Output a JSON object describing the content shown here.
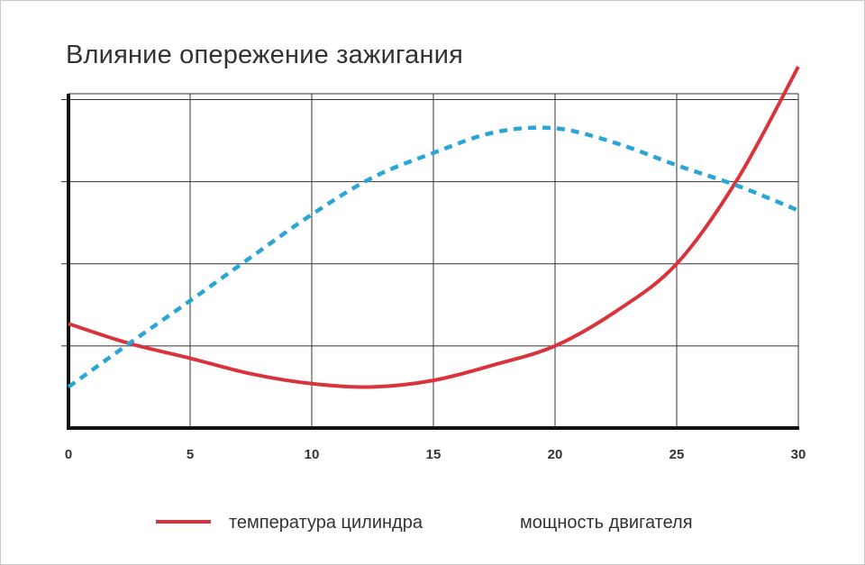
{
  "title": "Влияние опережение зажигания",
  "colors": {
    "temperature": "#d9343d",
    "power": "#2aa6d6",
    "grid": "#333333",
    "axis": "#111111"
  },
  "chart_data": {
    "type": "line",
    "title": "Влияние опережение зажигания",
    "xlabel": "",
    "ylabel": "",
    "xlim": [
      0,
      30
    ],
    "ylim": [
      0,
      4.4
    ],
    "xticks": [
      0,
      5,
      10,
      15,
      20,
      25,
      30
    ],
    "xtick_labels": [
      "0",
      "5",
      "10",
      "15",
      "20",
      "25",
      "30"
    ],
    "grid": true,
    "legend_position": "bottom",
    "series": [
      {
        "name": "температура цилиндра",
        "color": "#d9343d",
        "style": "solid",
        "x": [
          0,
          2.5,
          5,
          7.5,
          10,
          12.5,
          15,
          17.5,
          20,
          22.5,
          25,
          27.5,
          30
        ],
        "y": [
          1.27,
          1.03,
          0.85,
          0.66,
          0.54,
          0.5,
          0.58,
          0.77,
          1.0,
          1.42,
          2.0,
          3.03,
          4.4
        ]
      },
      {
        "name": "мощность двигателя",
        "color": "#2aa6d6",
        "style": "dashed",
        "x": [
          0,
          2.5,
          5,
          7.5,
          10,
          12.5,
          15,
          17.5,
          20,
          22.5,
          25,
          27.5,
          30
        ],
        "y": [
          0.5,
          1.03,
          1.55,
          2.08,
          2.6,
          3.05,
          3.35,
          3.6,
          3.65,
          3.47,
          3.2,
          2.95,
          2.65
        ]
      }
    ]
  }
}
